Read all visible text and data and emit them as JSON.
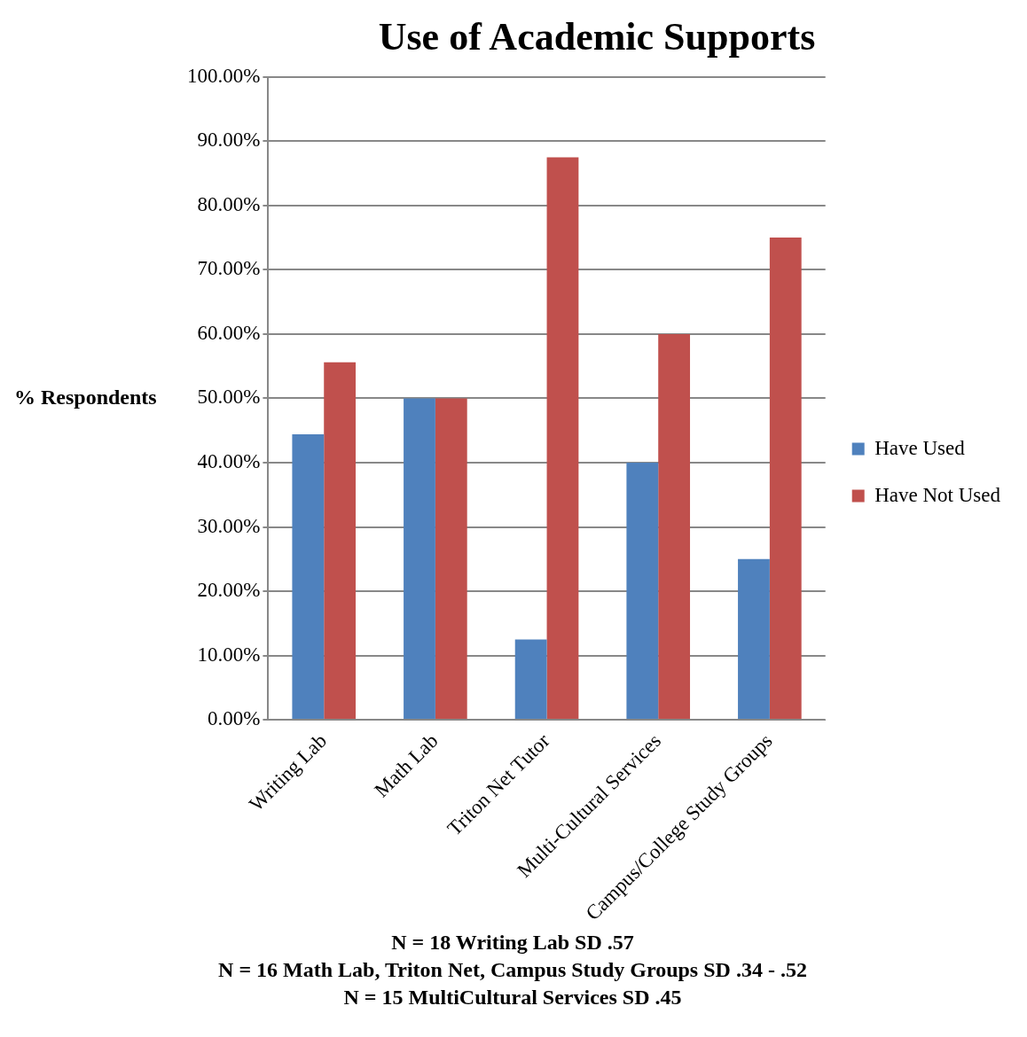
{
  "chart_data": {
    "type": "bar",
    "title": "Use of Academic Supports",
    "ylabel": "% Respondents",
    "categories": [
      "Writing Lab",
      "Math Lab",
      "Triton Net Tutor",
      "Multi-Cultural Services",
      "Campus/College Study Groups"
    ],
    "series": [
      {
        "name": "Have Used",
        "color": "#4f81bd",
        "values": [
          44.4,
          50,
          12.5,
          40,
          25
        ]
      },
      {
        "name": "Have Not Used",
        "color": "#c0504d",
        "values": [
          55.6,
          50,
          87.5,
          60,
          75
        ]
      }
    ],
    "ylim": [
      0,
      100
    ],
    "yticks": [
      {
        "value": 0,
        "label": "0.00%"
      },
      {
        "value": 10,
        "label": "10.00%"
      },
      {
        "value": 20,
        "label": "20.00%"
      },
      {
        "value": 30,
        "label": "30.00%"
      },
      {
        "value": 40,
        "label": "40.00%"
      },
      {
        "value": 50,
        "label": "50.00%"
      },
      {
        "value": 60,
        "label": "60.00%"
      },
      {
        "value": 70,
        "label": "70.00%"
      },
      {
        "value": 80,
        "label": "80.00%"
      },
      {
        "value": 90,
        "label": "90.00%"
      },
      {
        "value": 100,
        "label": "100.00%"
      }
    ],
    "grid": "y",
    "legend": "right",
    "annotations": [
      "N = 18 Writing Lab  SD .57",
      "N = 16 Math Lab, Triton Net, Campus Study Groups SD .34 - .52",
      "N = 15 MultiCultural Services SD .45"
    ]
  }
}
